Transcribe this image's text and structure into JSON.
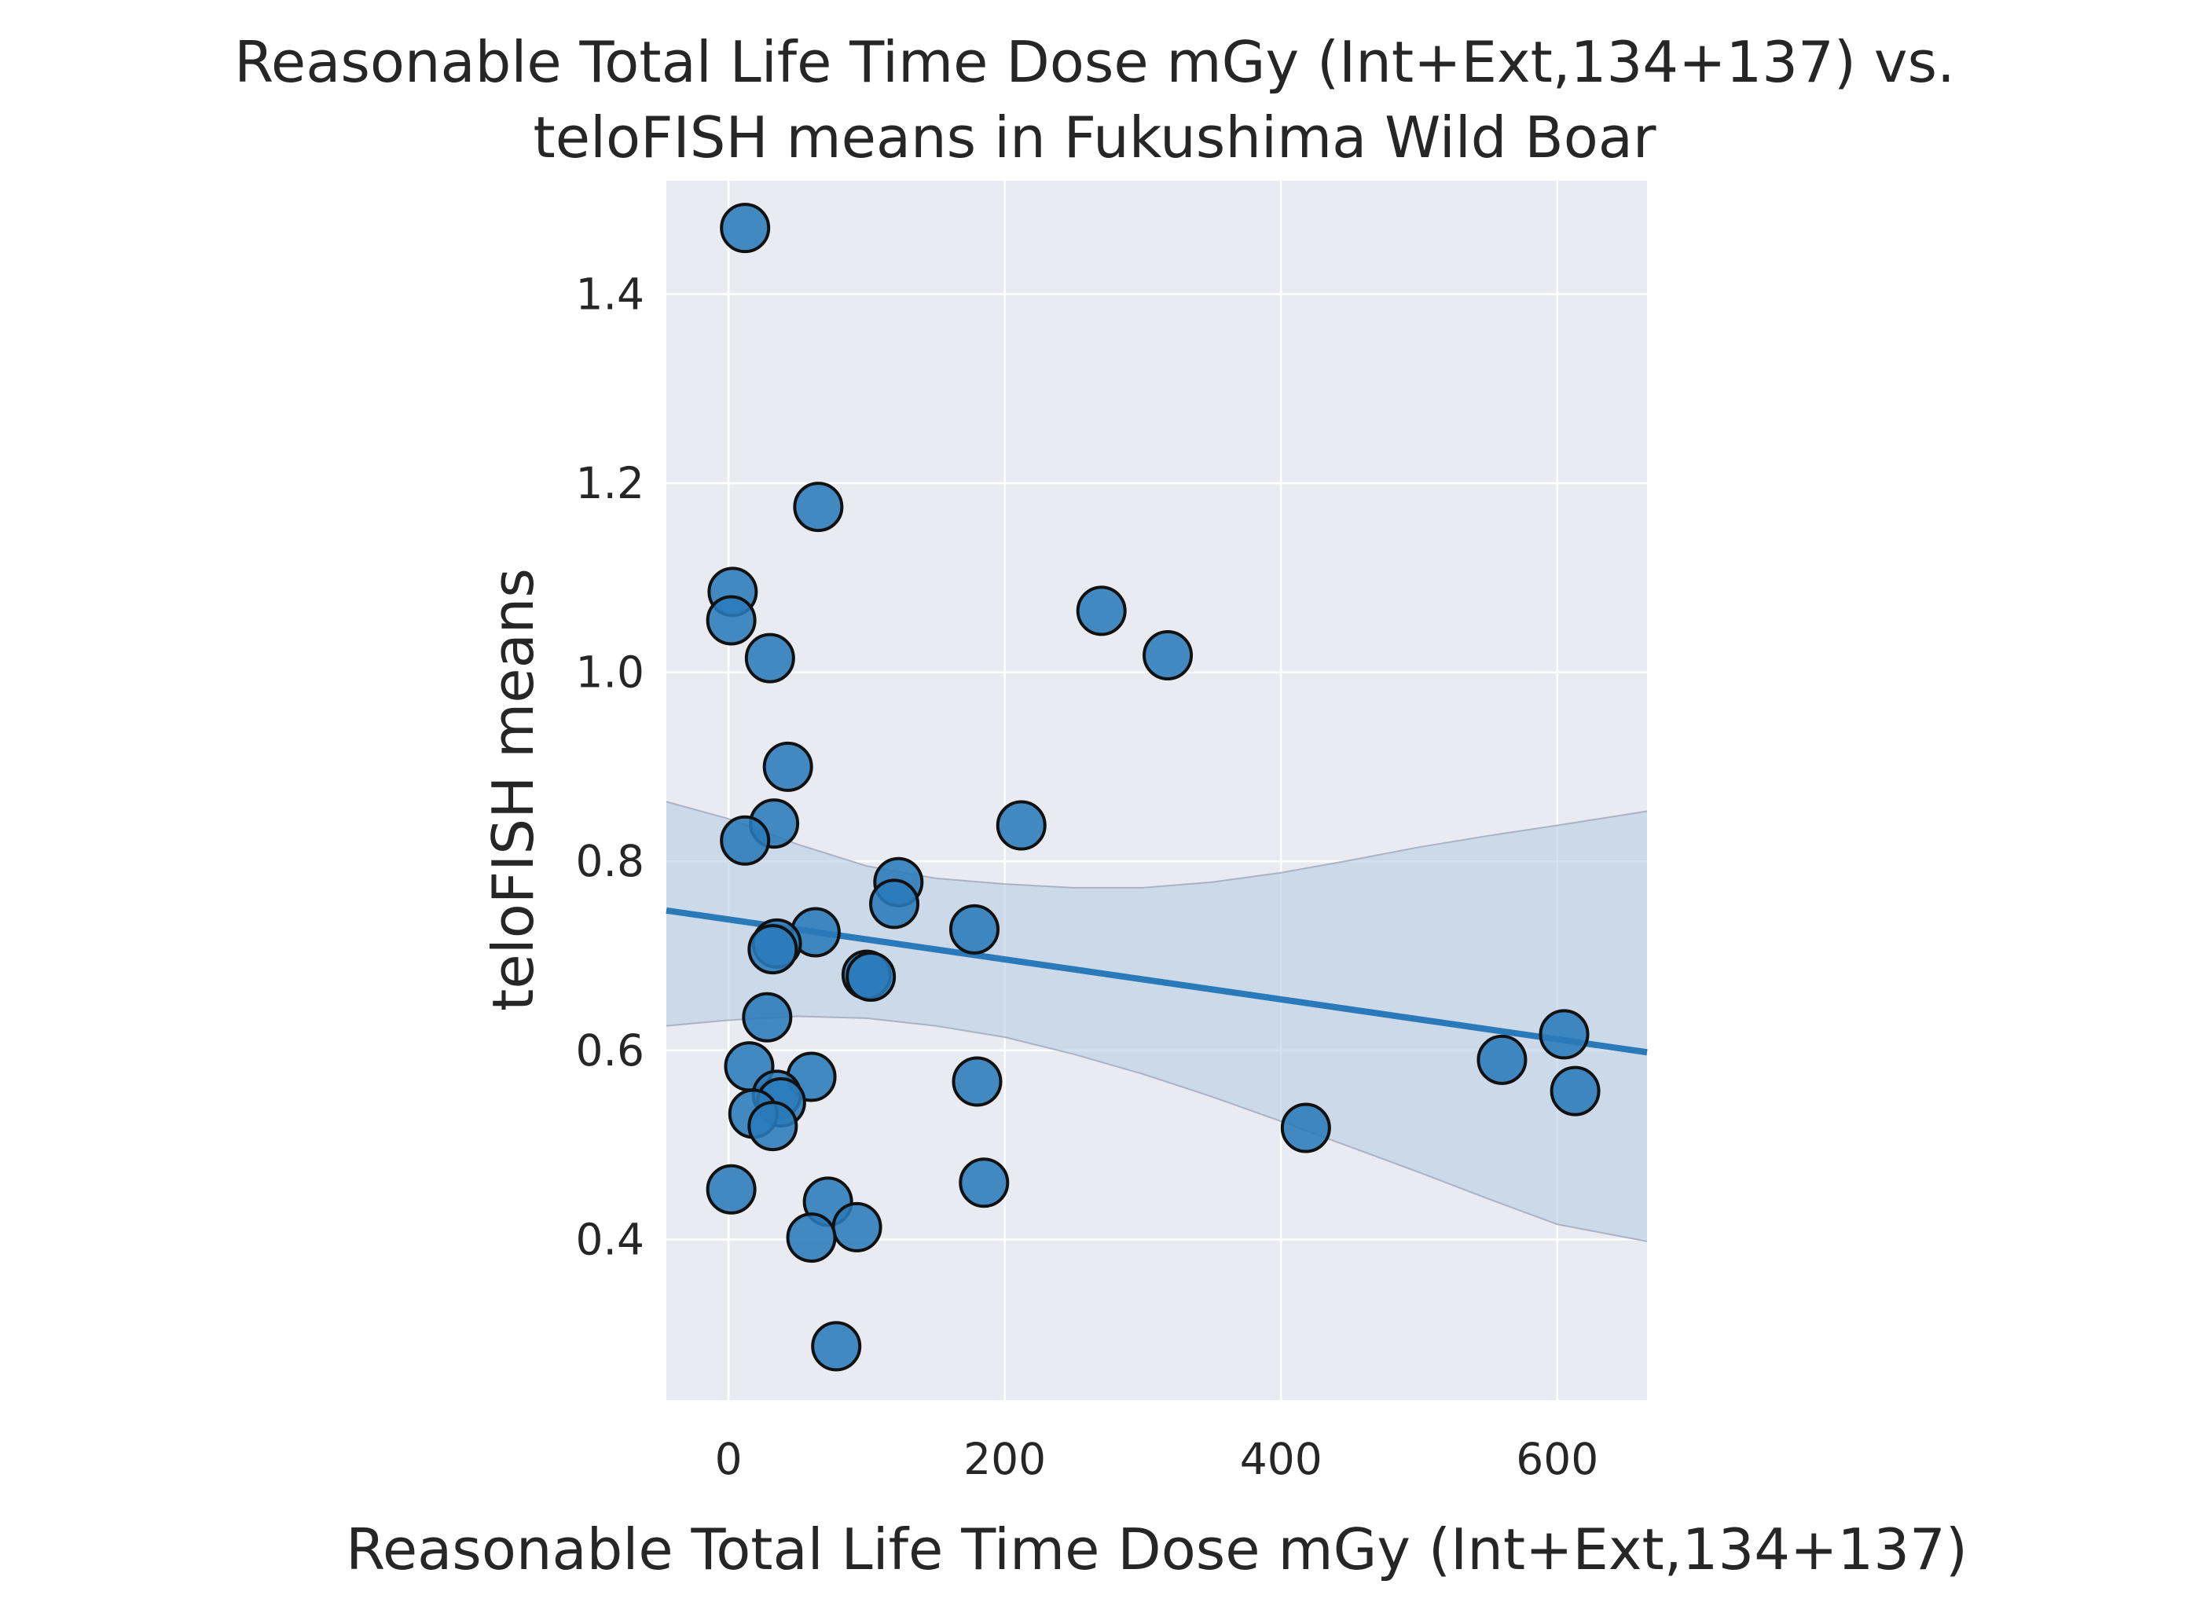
{
  "chart_data": {
    "type": "scatter",
    "title": "Reasonable Total Life Time Dose mGy (Int+Ext,134+137) vs.\nteloFISH means in Fukushima Wild Boar",
    "title_lines": [
      "Reasonable Total Life Time Dose mGy (Int+Ext,134+137) vs.",
      "teloFISH means in Fukushima Wild Boar"
    ],
    "xlabel": "Reasonable Total Life Time Dose mGy (Int+Ext,134+137)",
    "ylabel": "teloFISH means",
    "xlim": [
      -45,
      665
    ],
    "ylim": [
      0.23,
      1.52
    ],
    "xticks": [
      0,
      200,
      400,
      600
    ],
    "xtick_labels": [
      "0",
      "200",
      "400",
      "600"
    ],
    "yticks": [
      0.4,
      0.6,
      0.8,
      1.0,
      1.2,
      1.4
    ],
    "ytick_labels": [
      "0.4",
      "0.6",
      "0.8",
      "1.0",
      "1.2",
      "1.4"
    ],
    "grid": true,
    "background_color": "#eaeaf2",
    "point_color": "#2a7ab9",
    "line_color": "#2a7ab9",
    "band_color": "#b8cde2",
    "points": [
      {
        "x": 12,
        "y": 1.47
      },
      {
        "x": 65,
        "y": 1.175
      },
      {
        "x": 3,
        "y": 1.085
      },
      {
        "x": 2,
        "y": 1.055
      },
      {
        "x": 30,
        "y": 1.015
      },
      {
        "x": 270,
        "y": 1.065
      },
      {
        "x": 318,
        "y": 1.018
      },
      {
        "x": 43,
        "y": 0.9
      },
      {
        "x": 33,
        "y": 0.84
      },
      {
        "x": 12,
        "y": 0.822
      },
      {
        "x": 212,
        "y": 0.838
      },
      {
        "x": 123,
        "y": 0.778
      },
      {
        "x": 120,
        "y": 0.755
      },
      {
        "x": 63,
        "y": 0.725
      },
      {
        "x": 178,
        "y": 0.728
      },
      {
        "x": 35,
        "y": 0.713
      },
      {
        "x": 32,
        "y": 0.707
      },
      {
        "x": 100,
        "y": 0.68
      },
      {
        "x": 103,
        "y": 0.678
      },
      {
        "x": 28,
        "y": 0.635
      },
      {
        "x": 605,
        "y": 0.617
      },
      {
        "x": 560,
        "y": 0.59
      },
      {
        "x": 15,
        "y": 0.583
      },
      {
        "x": 60,
        "y": 0.572
      },
      {
        "x": 180,
        "y": 0.567
      },
      {
        "x": 613,
        "y": 0.557
      },
      {
        "x": 35,
        "y": 0.553
      },
      {
        "x": 38,
        "y": 0.545
      },
      {
        "x": 18,
        "y": 0.533
      },
      {
        "x": 32,
        "y": 0.52
      },
      {
        "x": 418,
        "y": 0.518
      },
      {
        "x": 185,
        "y": 0.46
      },
      {
        "x": 2,
        "y": 0.453
      },
      {
        "x": 72,
        "y": 0.44
      },
      {
        "x": 93,
        "y": 0.413
      },
      {
        "x": 60,
        "y": 0.402
      },
      {
        "x": 78,
        "y": 0.287
      }
    ],
    "regression": {
      "x": [
        -45,
        665
      ],
      "y": [
        0.748,
        0.598
      ]
    },
    "confidence_band": {
      "x": [
        -45,
        0,
        50,
        100,
        150,
        200,
        250,
        300,
        350,
        400,
        450,
        500,
        550,
        600,
        665
      ],
      "upper": [
        0.863,
        0.845,
        0.818,
        0.795,
        0.782,
        0.776,
        0.772,
        0.772,
        0.778,
        0.788,
        0.801,
        0.815,
        0.827,
        0.838,
        0.853
      ],
      "lower": [
        0.626,
        0.632,
        0.636,
        0.634,
        0.626,
        0.614,
        0.596,
        0.575,
        0.551,
        0.525,
        0.498,
        0.471,
        0.443,
        0.416,
        0.398
      ]
    }
  }
}
